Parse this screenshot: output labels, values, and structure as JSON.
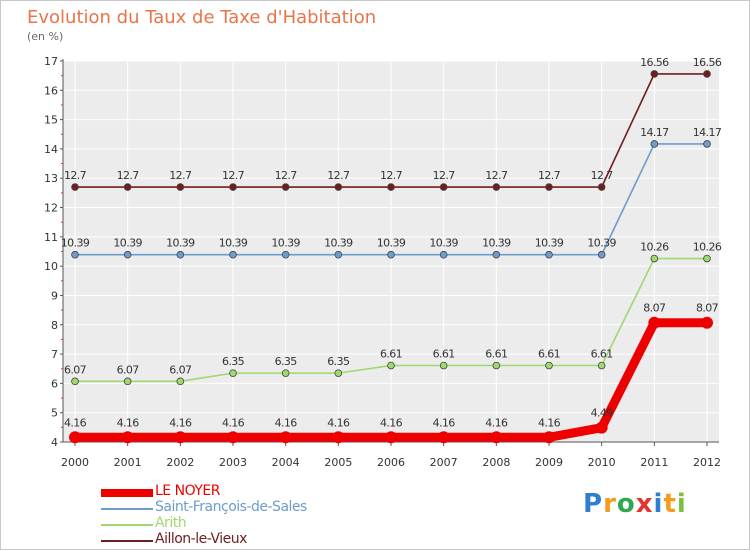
{
  "title": "Evolution du Taux de Taxe d'Habitation",
  "subtitle": "(en %)",
  "brand": {
    "letters": [
      "P",
      "r",
      "o",
      "x",
      "i",
      "t",
      "i"
    ],
    "colors": [
      "#2f7fd0",
      "#f39c1f",
      "#2fa84f",
      "#e2342b",
      "#2f7fd0",
      "#f39c1f",
      "#7bc043"
    ]
  },
  "chart_data": {
    "type": "line",
    "x": [
      2000,
      2001,
      2002,
      2003,
      2004,
      2005,
      2006,
      2007,
      2008,
      2009,
      2010,
      2011,
      2012
    ],
    "ylim": [
      4,
      17
    ],
    "yticks": [
      4,
      5,
      6,
      7,
      8,
      9,
      10,
      11,
      12,
      13,
      14,
      15,
      16,
      17
    ],
    "grid": true,
    "legend_position": "bottom-left",
    "series": [
      {
        "name": "Aillon-le-Vieux",
        "color": "#6e1e1e",
        "values": [
          12.7,
          12.7,
          12.7,
          12.7,
          12.7,
          12.7,
          12.7,
          12.7,
          12.7,
          12.7,
          12.7,
          16.56,
          16.56
        ],
        "labels": [
          "12.7",
          "12.7",
          "12.7",
          "12.7",
          "12.7",
          "12.7",
          "12.7",
          "12.7",
          "12.7",
          "12.7",
          "12.7",
          "16.56",
          "16.56"
        ]
      },
      {
        "name": "Saint-François-de-Sales",
        "color": "#6e9ccc",
        "values": [
          10.39,
          10.39,
          10.39,
          10.39,
          10.39,
          10.39,
          10.39,
          10.39,
          10.39,
          10.39,
          10.39,
          14.17,
          14.17
        ],
        "labels": [
          "10.39",
          "10.39",
          "10.39",
          "10.39",
          "10.39",
          "10.39",
          "10.39",
          "10.39",
          "10.39",
          "10.39",
          "10.39",
          "14.17",
          "14.17"
        ]
      },
      {
        "name": "Arith",
        "color": "#9fd86f",
        "values": [
          6.07,
          6.07,
          6.07,
          6.35,
          6.35,
          6.35,
          6.61,
          6.61,
          6.61,
          6.61,
          6.61,
          10.26,
          10.26
        ],
        "labels": [
          "6.07",
          "6.07",
          "6.07",
          "6.35",
          "6.35",
          "6.35",
          "6.61",
          "6.61",
          "6.61",
          "6.61",
          "6.61",
          "10.26",
          "10.26"
        ]
      },
      {
        "name": "LE NOYER",
        "color": "#ee0000",
        "values": [
          4.16,
          4.16,
          4.16,
          4.16,
          4.16,
          4.16,
          4.16,
          4.16,
          4.16,
          4.16,
          4.49,
          8.07,
          8.07
        ],
        "labels": [
          "4.16",
          "4.16",
          "4.16",
          "4.16",
          "4.16",
          "4.16",
          "4.16",
          "4.16",
          "4.16",
          "4.16",
          "4.49",
          "8.07",
          "8.07"
        ]
      }
    ],
    "legend_order": [
      "LE NOYER",
      "Saint-François-de-Sales",
      "Arith",
      "Aillon-le-Vieux"
    ]
  }
}
